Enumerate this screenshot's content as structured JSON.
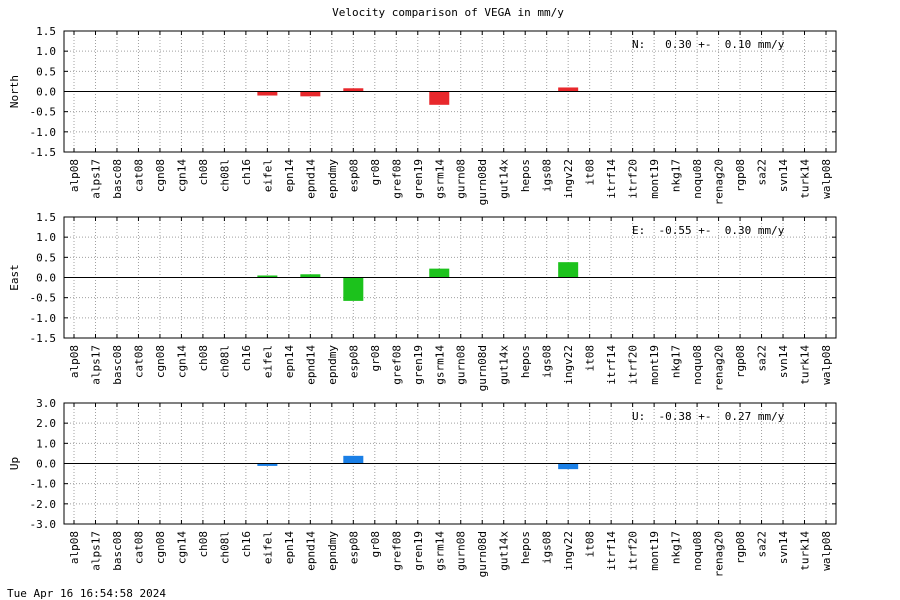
{
  "page": {
    "title": "Velocity comparison of VEGA in mm/y",
    "timestamp": "Tue Apr 16 16:54:58 2024"
  },
  "chart_data": {
    "type": "bar",
    "categories": [
      "alp08",
      "alps17",
      "basc08",
      "cat08",
      "cgn08",
      "cgn14",
      "ch08",
      "ch08l",
      "ch16",
      "eifel",
      "epn14",
      "epnd14",
      "epndmy",
      "esp08",
      "gr08",
      "gref08",
      "gren19",
      "gsrm14",
      "gurn08",
      "gurn08d",
      "gut14x",
      "hepos",
      "igs08",
      "ingv22",
      "it08",
      "itrf14",
      "itrf20",
      "mont19",
      "nkg17",
      "noqu08",
      "renag20",
      "rgp08",
      "sa22",
      "svn14",
      "turk14",
      "walp08"
    ],
    "panels": [
      {
        "ylabel": "North",
        "annotation": "N:   0.30 +-  0.10 mm/y",
        "color": "#e8282c",
        "ylim": [
          -1.5,
          1.5
        ],
        "yticks": [
          -1.5,
          -1.0,
          -0.5,
          0.0,
          0.5,
          1.0,
          1.5
        ],
        "yticklabels": [
          "-1.5",
          "-1.0",
          "-0.5",
          "0.0",
          "0.5",
          "1.0",
          "1.5"
        ],
        "values": [
          0,
          0,
          0,
          0,
          0,
          0,
          0,
          0,
          0,
          -0.1,
          0,
          -0.12,
          0,
          0.08,
          0,
          0,
          0,
          -0.33,
          0,
          0,
          0,
          0,
          0,
          0.1,
          0,
          0,
          0,
          0,
          0,
          0,
          0,
          0,
          0,
          0,
          0,
          0
        ]
      },
      {
        "ylabel": "East",
        "annotation": "E:  -0.55 +-  0.30 mm/y",
        "color": "#1cc21c",
        "ylim": [
          -1.5,
          1.5
        ],
        "yticks": [
          -1.5,
          -1.0,
          -0.5,
          0.0,
          0.5,
          1.0,
          1.5
        ],
        "yticklabels": [
          "-1.5",
          "-1.0",
          "-0.5",
          "0.0",
          "0.5",
          "1.0",
          "1.5"
        ],
        "values": [
          0,
          0,
          0,
          0,
          0,
          0,
          0,
          0,
          0,
          0.05,
          0,
          0.08,
          0,
          -0.58,
          0,
          0,
          0,
          0.22,
          0,
          0,
          0,
          0,
          0,
          0.38,
          0,
          0,
          0,
          0,
          0,
          0,
          0,
          0,
          0,
          0,
          0,
          0
        ]
      },
      {
        "ylabel": "Up",
        "annotation": "U:  -0.38 +-  0.27 mm/y",
        "color": "#1a7fe6",
        "ylim": [
          -3.0,
          3.0
        ],
        "yticks": [
          -3.0,
          -2.0,
          -1.0,
          0.0,
          1.0,
          2.0,
          3.0
        ],
        "yticklabels": [
          "-3.0",
          "-2.0",
          "-1.0",
          "0.0",
          "1.0",
          "2.0",
          "3.0"
        ],
        "values": [
          0,
          0,
          0,
          0,
          0,
          0,
          0,
          0,
          0,
          -0.12,
          0,
          0,
          0,
          0.38,
          0,
          0,
          0,
          0,
          0,
          0,
          0,
          0,
          0,
          -0.28,
          0,
          0,
          0,
          0,
          0,
          0,
          0,
          0,
          0,
          0,
          0,
          0
        ]
      }
    ],
    "grid": true
  }
}
